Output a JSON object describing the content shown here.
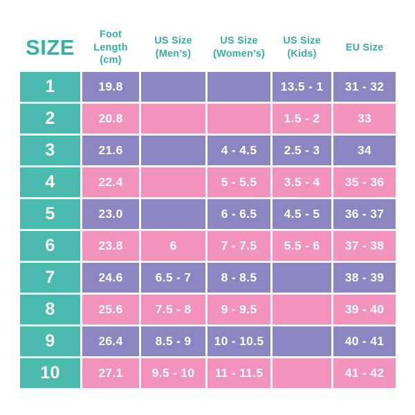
{
  "colors": {
    "teal": "#4ab9ae",
    "purple": "#8b85c2",
    "pink": "#f293be",
    "header-text": "#36afa6",
    "cell-text": "#ffffff",
    "background": "#ffffff"
  },
  "header": {
    "size": "SIZE",
    "columns": [
      {
        "line1": "Foot Length",
        "line2": "(cm)"
      },
      {
        "line1": "US Size",
        "line2": "(Men’s)"
      },
      {
        "line1": "US Size",
        "line2": "(Women’s)"
      },
      {
        "line1": "US Size",
        "line2": "(Kids)"
      },
      {
        "line1": "EU Size",
        "line2": ""
      }
    ]
  },
  "chart_data": {
    "type": "table",
    "title": "Shoe size conversion table",
    "columns": [
      "SIZE",
      "Foot Length (cm)",
      "US Size (Men’s)",
      "US Size (Women’s)",
      "US Size (Kids)",
      "EU Size"
    ],
    "rows": [
      [
        "1",
        "19.8",
        "",
        "",
        "13.5 - 1",
        "31 - 32"
      ],
      [
        "2",
        "20.8",
        "",
        "",
        "1.5 - 2",
        "33"
      ],
      [
        "3",
        "21.6",
        "",
        "4 - 4.5",
        "2.5 - 3",
        "34"
      ],
      [
        "4",
        "22.4",
        "",
        "5 - 5.5",
        "3.5 - 4",
        "35 - 36"
      ],
      [
        "5",
        "23.0",
        "",
        "6 - 6.5",
        "4.5 - 5",
        "36 - 37"
      ],
      [
        "6",
        "23.8",
        "6",
        "7 - 7.5",
        "5.5 - 6",
        "37 - 38"
      ],
      [
        "7",
        "24.6",
        "6.5 - 7",
        "8 - 8.5",
        "",
        "38 - 39"
      ],
      [
        "8",
        "25.6",
        "7.5 - 8",
        "9 - 9.5",
        "",
        "39 - 40"
      ],
      [
        "9",
        "26.4",
        "8.5 - 9",
        "10 - 10.5",
        "",
        "40 - 41"
      ],
      [
        "10",
        "27.1",
        "9.5 - 10",
        "11 - 11.5",
        "",
        "41 - 42"
      ]
    ],
    "row_fill_pattern": [
      "purple",
      "pink",
      "purple",
      "pink",
      "purple",
      "pink",
      "purple",
      "pink",
      "purple",
      "pink"
    ],
    "first_column_fill": "teal"
  }
}
